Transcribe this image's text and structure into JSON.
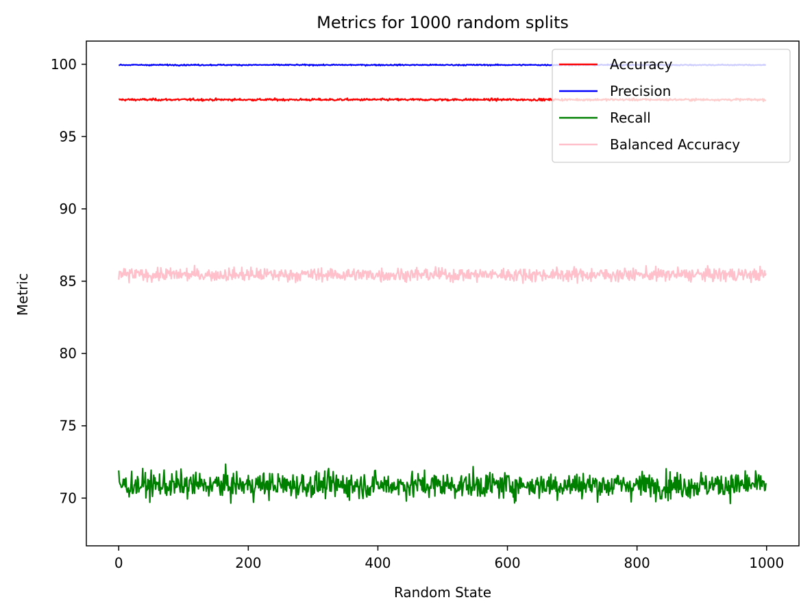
{
  "chart_data": {
    "type": "line",
    "title": "Metrics for 1000 random splits",
    "xlabel": "Random State",
    "ylabel": "Metric",
    "xlim": [
      -50,
      1050
    ],
    "ylim": [
      66.7,
      101.6
    ],
    "xticks": [
      0,
      200,
      400,
      600,
      800,
      1000
    ],
    "yticks": [
      70,
      75,
      80,
      85,
      90,
      95,
      100
    ],
    "grid": false,
    "legend_position": "top-right",
    "n_points": 1000,
    "series": [
      {
        "name": "Accuracy",
        "color": "#ff0000",
        "mean": 97.55,
        "min": 97.3,
        "max": 97.75,
        "values_sample": [
          97.55,
          97.5,
          97.6,
          97.45,
          97.55,
          97.65,
          97.5,
          97.4,
          97.55,
          97.6
        ]
      },
      {
        "name": "Precision",
        "color": "#0000ff",
        "mean": 99.95,
        "min": 99.75,
        "max": 100.0,
        "values_sample": [
          100.0,
          99.95,
          99.9,
          100.0,
          99.95,
          99.85,
          100.0,
          99.95,
          99.9,
          100.0
        ]
      },
      {
        "name": "Recall",
        "color": "#008000",
        "mean": 70.9,
        "min": 68.2,
        "max": 73.5,
        "values_sample": [
          71.2,
          70.4,
          72.0,
          69.8,
          70.9,
          71.5,
          70.2,
          72.6,
          69.5,
          70.8
        ]
      },
      {
        "name": "Balanced Accuracy",
        "color": "#ffc0cb",
        "mean": 85.45,
        "min": 84.1,
        "max": 86.8,
        "values_sample": [
          85.6,
          85.2,
          86.0,
          84.9,
          85.5,
          85.8,
          85.1,
          86.3,
          84.7,
          85.4
        ]
      }
    ]
  }
}
